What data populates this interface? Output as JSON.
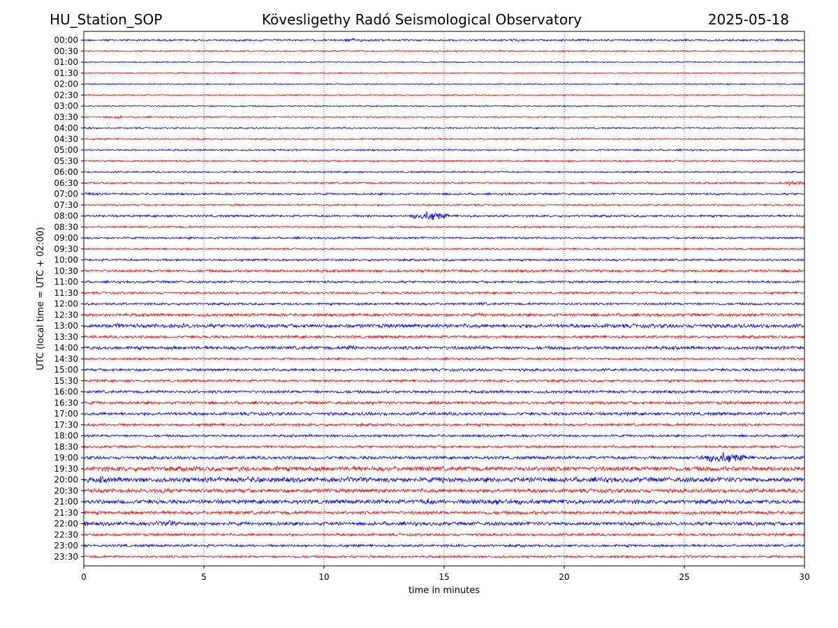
{
  "chart_data": {
    "type": "line",
    "header": {
      "left": "HU_Station_SOP",
      "center": "Kövesligethy Radó Seismological Observatory",
      "right": "2025-05-18"
    },
    "xlabel": "time in minutes",
    "ylabel": "UTC (local time = UTC + 02:00)",
    "xlim": [
      0,
      30
    ],
    "x_ticks": [
      0,
      5,
      10,
      15,
      20,
      25,
      30
    ],
    "grid": "vertical dotted at x ticks",
    "colors": {
      "even_row": "#0000ff",
      "odd_row": "#ff0000",
      "grid": "#000000"
    },
    "rows": [
      {
        "label": "00:00",
        "amp": 1.6,
        "bursts": [
          [
            0.3,
            15,
            1.6
          ],
          [
            11.3,
            1,
            3
          ],
          [
            18,
            2,
            2
          ]
        ]
      },
      {
        "label": "00:30",
        "amp": 1.2,
        "bursts": [
          [
            15,
            15,
            1.4
          ]
        ]
      },
      {
        "label": "01:00",
        "amp": 1.0,
        "bursts": []
      },
      {
        "label": "01:30",
        "amp": 1.0,
        "bursts": []
      },
      {
        "label": "02:00",
        "amp": 1.0,
        "bursts": []
      },
      {
        "label": "02:30",
        "amp": 1.0,
        "bursts": []
      },
      {
        "label": "03:00",
        "amp": 1.1,
        "bursts": []
      },
      {
        "label": "03:30",
        "amp": 1.2,
        "bursts": [
          [
            1.4,
            0.3,
            3
          ]
        ]
      },
      {
        "label": "04:00",
        "amp": 1.3,
        "bursts": [
          [
            0.2,
            0.5,
            2
          ]
        ]
      },
      {
        "label": "04:30",
        "amp": 1.2,
        "bursts": [
          [
            4.8,
            0.3,
            2.5
          ]
        ]
      },
      {
        "label": "05:00",
        "amp": 1.4,
        "bursts": []
      },
      {
        "label": "05:30",
        "amp": 1.5,
        "bursts": [
          [
            1.2,
            0.3,
            2.2
          ]
        ]
      },
      {
        "label": "06:00",
        "amp": 1.4,
        "bursts": []
      },
      {
        "label": "06:30",
        "amp": 1.6,
        "bursts": [
          [
            29.5,
            0.6,
            4
          ]
        ]
      },
      {
        "label": "07:00",
        "amp": 1.7,
        "bursts": [
          [
            0.3,
            0.5,
            3.5
          ]
        ]
      },
      {
        "label": "07:30",
        "amp": 1.4,
        "bursts": [
          [
            6.4,
            0.3,
            2.5
          ]
        ]
      },
      {
        "label": "08:00",
        "amp": 1.8,
        "bursts": [
          [
            14.4,
            0.8,
            8
          ]
        ]
      },
      {
        "label": "08:30",
        "amp": 1.5,
        "bursts": []
      },
      {
        "label": "09:00",
        "amp": 1.7,
        "bursts": []
      },
      {
        "label": "09:30",
        "amp": 1.5,
        "bursts": [
          [
            14.2,
            0.2,
            3
          ],
          [
            19,
            0.4,
            2.5
          ]
        ]
      },
      {
        "label": "10:00",
        "amp": 1.8,
        "bursts": []
      },
      {
        "label": "10:30",
        "amp": 2.2,
        "bursts": []
      },
      {
        "label": "11:00",
        "amp": 1.9,
        "bursts": []
      },
      {
        "label": "11:30",
        "amp": 1.8,
        "bursts": []
      },
      {
        "label": "12:00",
        "amp": 1.9,
        "bursts": [
          [
            16.6,
            0.4,
            3
          ]
        ]
      },
      {
        "label": "12:30",
        "amp": 2.4,
        "bursts": [
          [
            16.5,
            1,
            3
          ],
          [
            29.3,
            1,
            3
          ]
        ]
      },
      {
        "label": "13:00",
        "amp": 3.2,
        "bursts": [
          [
            1.4,
            0.4,
            5
          ],
          [
            4.2,
            0.5,
            5
          ],
          [
            14.9,
            1,
            4
          ]
        ]
      },
      {
        "label": "13:30",
        "amp": 2.3,
        "bursts": []
      },
      {
        "label": "14:00",
        "amp": 2.8,
        "bursts": [
          [
            11.1,
            0.6,
            4.5
          ]
        ]
      },
      {
        "label": "14:30",
        "amp": 1.8,
        "bursts": []
      },
      {
        "label": "15:00",
        "amp": 2.2,
        "bursts": []
      },
      {
        "label": "15:30",
        "amp": 2.0,
        "bursts": []
      },
      {
        "label": "16:00",
        "amp": 2.3,
        "bursts": []
      },
      {
        "label": "16:30",
        "amp": 2.4,
        "bursts": [
          [
            14.6,
            0.6,
            4
          ]
        ]
      },
      {
        "label": "17:00",
        "amp": 2.6,
        "bursts": [
          [
            3.7,
            0.4,
            3.5
          ],
          [
            11.8,
            0.5,
            3.5
          ]
        ]
      },
      {
        "label": "17:30",
        "amp": 2.2,
        "bursts": []
      },
      {
        "label": "18:00",
        "amp": 2.0,
        "bursts": []
      },
      {
        "label": "18:30",
        "amp": 2.0,
        "bursts": []
      },
      {
        "label": "19:00",
        "amp": 2.6,
        "bursts": [
          [
            26.6,
            1.2,
            9
          ]
        ]
      },
      {
        "label": "19:30",
        "amp": 3.8,
        "bursts": [
          [
            6.6,
            0.5,
            5
          ]
        ]
      },
      {
        "label": "20:00",
        "amp": 4.0,
        "bursts": [
          [
            0.8,
            0.6,
            6
          ],
          [
            7.3,
            1.6,
            5.5
          ],
          [
            15,
            0.5,
            6
          ],
          [
            19,
            0.8,
            5
          ]
        ]
      },
      {
        "label": "20:30",
        "amp": 3.2,
        "bursts": [
          [
            3.2,
            0.6,
            5
          ]
        ]
      },
      {
        "label": "21:00",
        "amp": 3.4,
        "bursts": [
          [
            1.7,
            0.4,
            5
          ],
          [
            14.3,
            0.6,
            5.5
          ],
          [
            17.2,
            3,
            5.5
          ],
          [
            20.1,
            0.4,
            5
          ]
        ]
      },
      {
        "label": "21:30",
        "amp": 2.8,
        "bursts": []
      },
      {
        "label": "22:00",
        "amp": 3.0,
        "bursts": [
          [
            0.1,
            0.3,
            5
          ],
          [
            3.5,
            0.5,
            6
          ]
        ]
      },
      {
        "label": "22:30",
        "amp": 2.2,
        "bursts": []
      },
      {
        "label": "23:00",
        "amp": 2.1,
        "bursts": [
          [
            1.7,
            0.3,
            3.5
          ]
        ]
      },
      {
        "label": "23:30",
        "amp": 1.9,
        "bursts": []
      }
    ]
  }
}
